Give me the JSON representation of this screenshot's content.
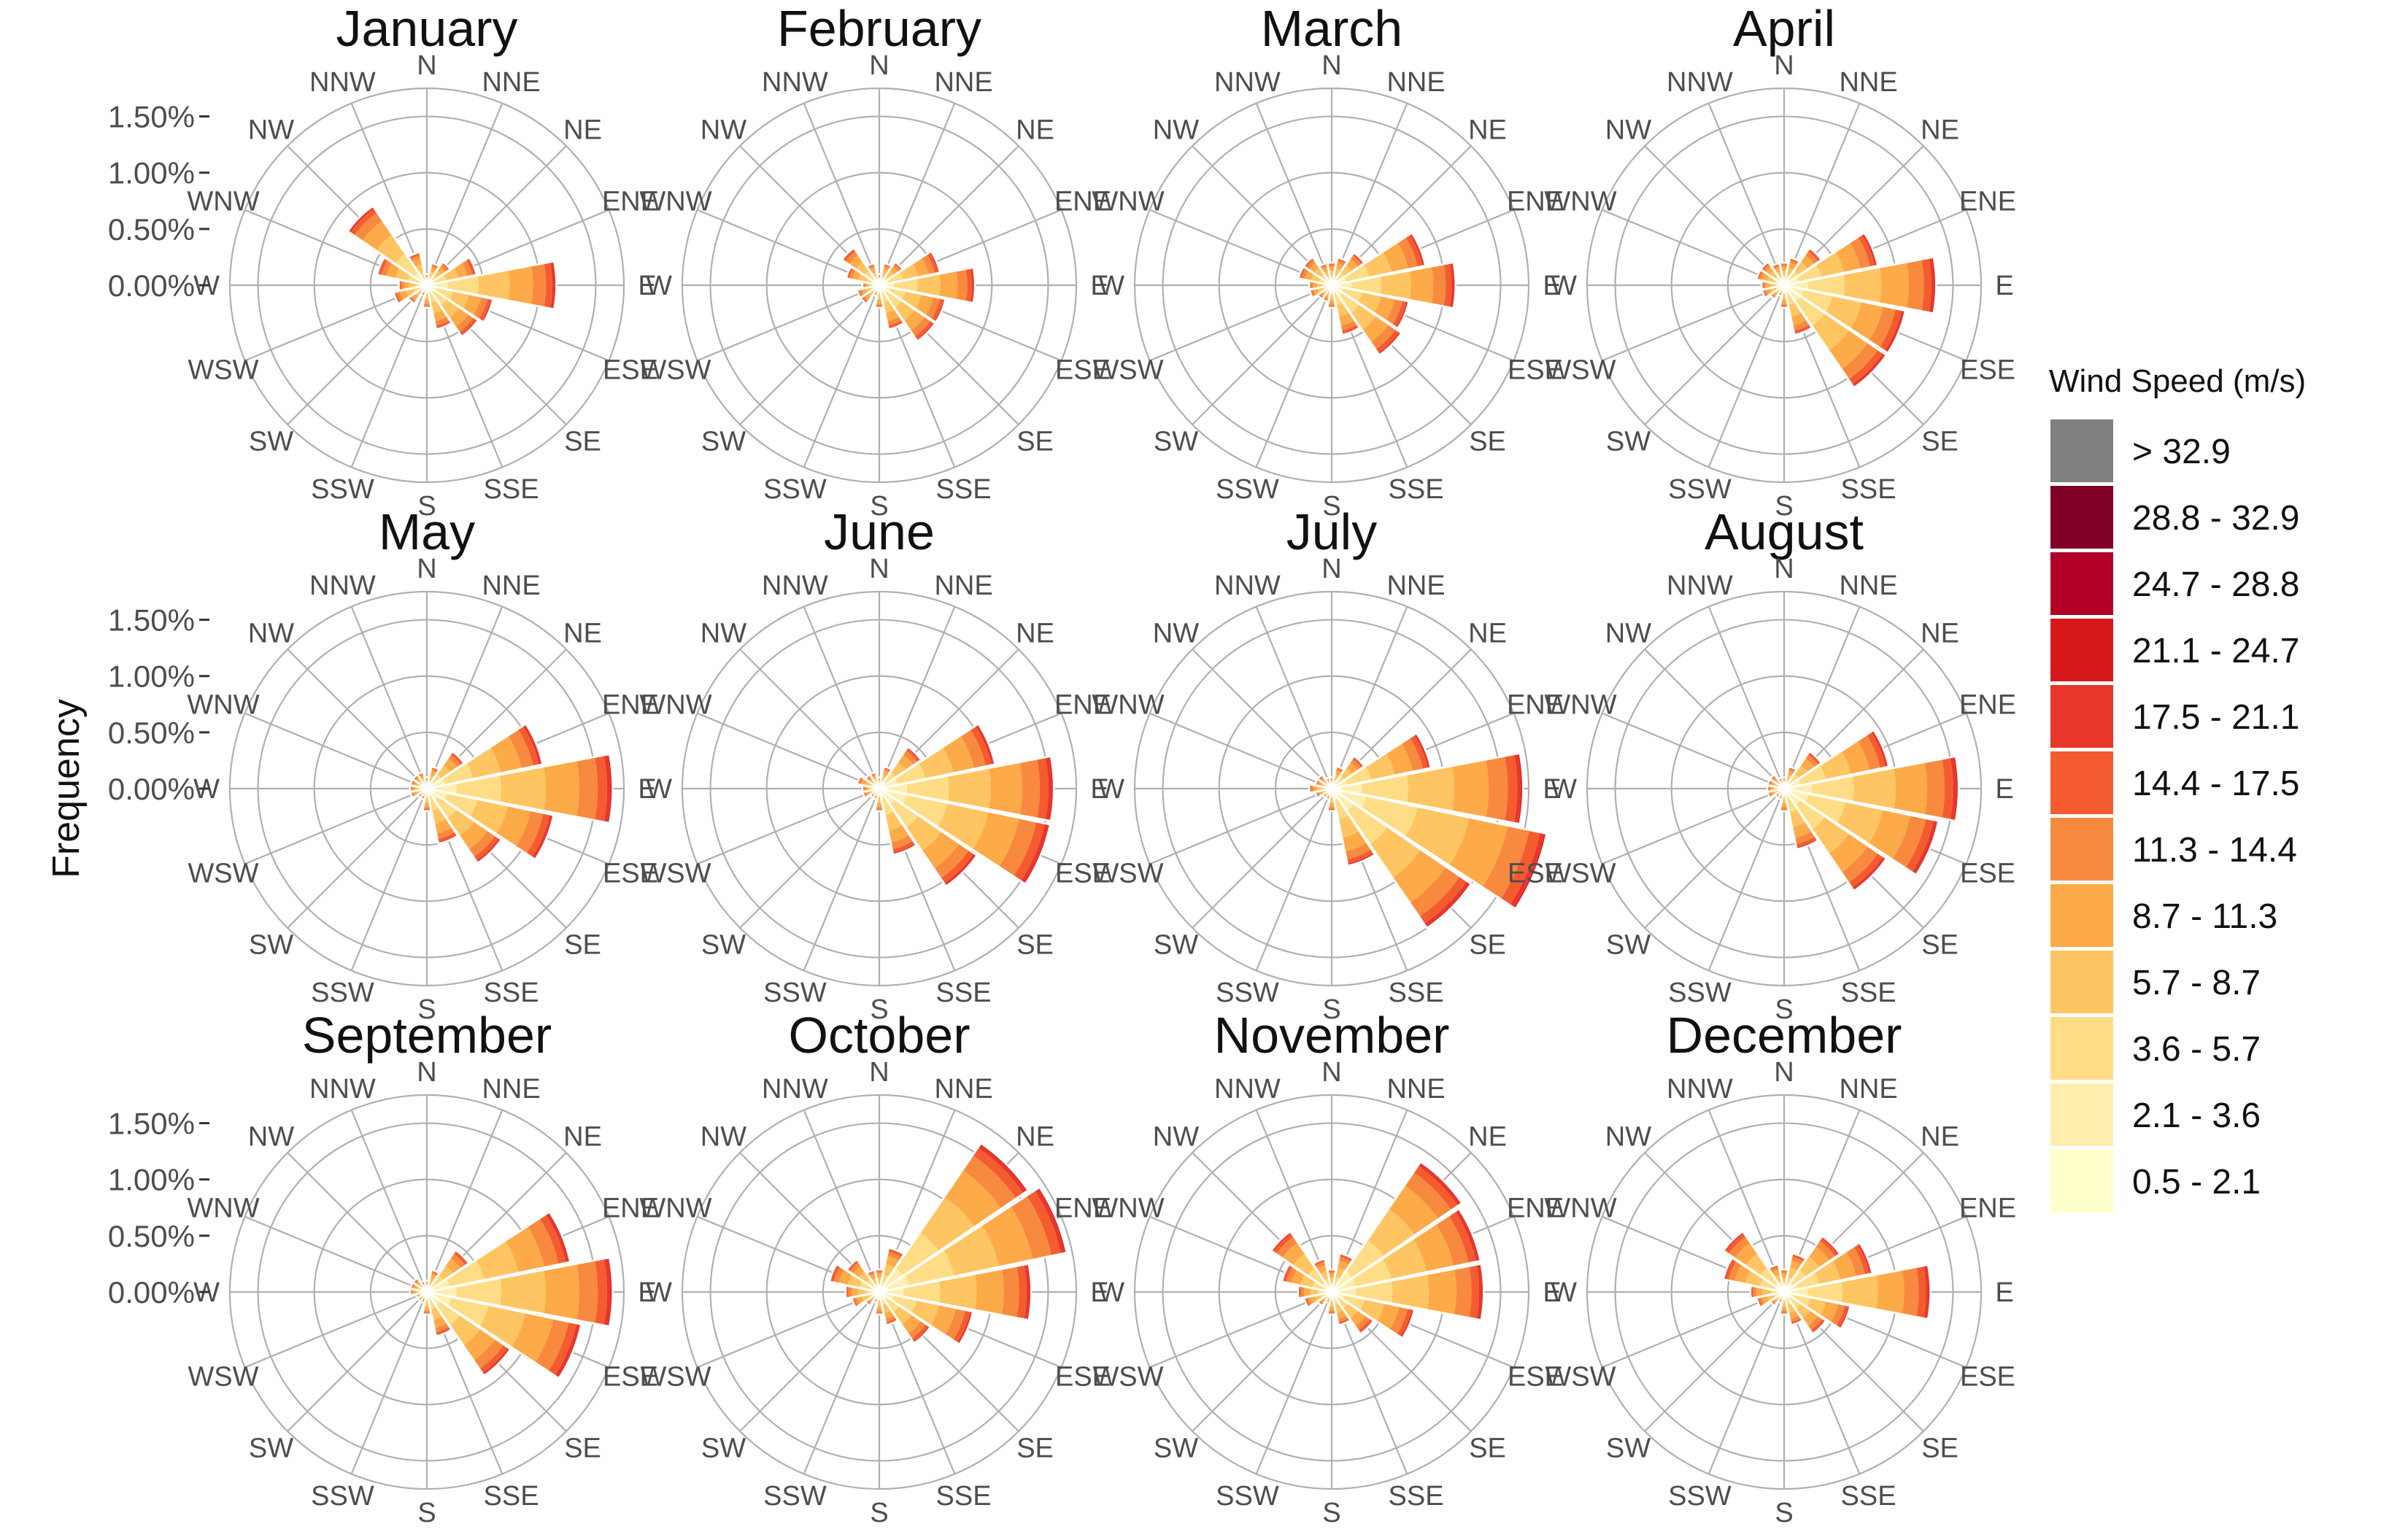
{
  "chart_data": {
    "type": "wind-rose",
    "layout": "3x4 grid of polar stacked bar charts",
    "ylabel": "Frequency",
    "radial_ticks": [
      "0.00%",
      "0.50%",
      "1.00%",
      "1.50%"
    ],
    "radial_tick_values": [
      0,
      0.5,
      1.0,
      1.5
    ],
    "rmax": 1.75,
    "directions": [
      "N",
      "NNE",
      "NE",
      "ENE",
      "E",
      "ESE",
      "SE",
      "SSE",
      "S",
      "SSW",
      "SW",
      "WSW",
      "W",
      "WNW",
      "NW",
      "NNW"
    ],
    "legend": {
      "title": "Wind Speed (m/s)",
      "bins": [
        {
          "label": "> 32.9",
          "color": "#808080"
        },
        {
          "label": "28.8 - 32.9",
          "color": "#800026"
        },
        {
          "label": "24.7 - 28.8",
          "color": "#B10026"
        },
        {
          "label": "21.1 - 24.7",
          "color": "#D7191C"
        },
        {
          "label": "17.5 - 21.1",
          "color": "#E9362A"
        },
        {
          "label": "14.4 - 17.5",
          "color": "#F45C30"
        },
        {
          "label": "11.3 - 14.4",
          "color": "#F88A3F"
        },
        {
          "label": "8.7 - 11.3",
          "color": "#FDAA48"
        },
        {
          "label": "5.7 - 8.7",
          "color": "#FEC562"
        },
        {
          "label": "3.6 - 5.7",
          "color": "#FEDD86"
        },
        {
          "label": "2.1 - 3.6",
          "color": "#FFEFAF"
        },
        {
          "label": "0.5 - 2.1",
          "color": "#FFFFCC"
        }
      ]
    },
    "panels": [
      {
        "title": "January",
        "totals": [
          0.1,
          0.2,
          0.25,
          0.45,
          1.15,
          0.6,
          0.55,
          0.4,
          0.2,
          0.1,
          0.2,
          0.3,
          0.25,
          0.45,
          0.85,
          0.3
        ]
      },
      {
        "title": "February",
        "totals": [
          0.1,
          0.2,
          0.25,
          0.55,
          0.85,
          0.6,
          0.6,
          0.4,
          0.2,
          0.1,
          0.2,
          0.2,
          0.15,
          0.3,
          0.4,
          0.2
        ]
      },
      {
        "title": "March",
        "totals": [
          0.2,
          0.25,
          0.35,
          0.85,
          1.1,
          0.7,
          0.75,
          0.45,
          0.2,
          0.15,
          0.15,
          0.2,
          0.2,
          0.3,
          0.3,
          0.2
        ]
      },
      {
        "title": "April",
        "totals": [
          0.2,
          0.25,
          0.4,
          0.85,
          1.35,
          1.1,
          1.1,
          0.45,
          0.2,
          0.1,
          0.15,
          0.2,
          0.2,
          0.25,
          0.25,
          0.2
        ]
      },
      {
        "title": "May",
        "totals": [
          0.1,
          0.2,
          0.4,
          1.05,
          1.65,
          1.15,
          0.8,
          0.5,
          0.2,
          0.1,
          0.1,
          0.15,
          0.15,
          0.15,
          0.15,
          0.15
        ]
      },
      {
        "title": "June",
        "totals": [
          0.1,
          0.2,
          0.45,
          1.05,
          1.55,
          1.55,
          1.05,
          0.6,
          0.2,
          0.1,
          0.1,
          0.15,
          0.15,
          0.2,
          0.15,
          0.15
        ]
      },
      {
        "title": "July",
        "totals": [
          0.1,
          0.2,
          0.35,
          0.9,
          1.7,
          1.95,
          1.5,
          0.7,
          0.2,
          0.1,
          0.1,
          0.15,
          0.2,
          0.15,
          0.15,
          0.1
        ]
      },
      {
        "title": "August",
        "totals": [
          0.1,
          0.2,
          0.4,
          0.95,
          1.55,
          1.4,
          1.1,
          0.55,
          0.2,
          0.1,
          0.1,
          0.15,
          0.15,
          0.15,
          0.15,
          0.1
        ]
      },
      {
        "title": "September",
        "totals": [
          0.1,
          0.2,
          0.45,
          1.3,
          1.65,
          1.4,
          0.9,
          0.4,
          0.2,
          0.1,
          0.1,
          0.1,
          0.15,
          0.15,
          0.15,
          0.1
        ]
      },
      {
        "title": "October",
        "totals": [
          0.2,
          0.4,
          1.6,
          1.7,
          1.35,
          0.85,
          0.55,
          0.3,
          0.2,
          0.1,
          0.15,
          0.25,
          0.3,
          0.45,
          0.35,
          0.2
        ]
      },
      {
        "title": "November",
        "totals": [
          0.2,
          0.35,
          1.4,
          1.35,
          1.35,
          0.75,
          0.45,
          0.3,
          0.2,
          0.1,
          0.15,
          0.25,
          0.3,
          0.45,
          0.65,
          0.3
        ]
      },
      {
        "title": "December",
        "totals": [
          0.2,
          0.35,
          0.6,
          0.8,
          1.3,
          0.6,
          0.45,
          0.3,
          0.2,
          0.1,
          0.15,
          0.25,
          0.3,
          0.55,
          0.65,
          0.25
        ]
      }
    ]
  }
}
